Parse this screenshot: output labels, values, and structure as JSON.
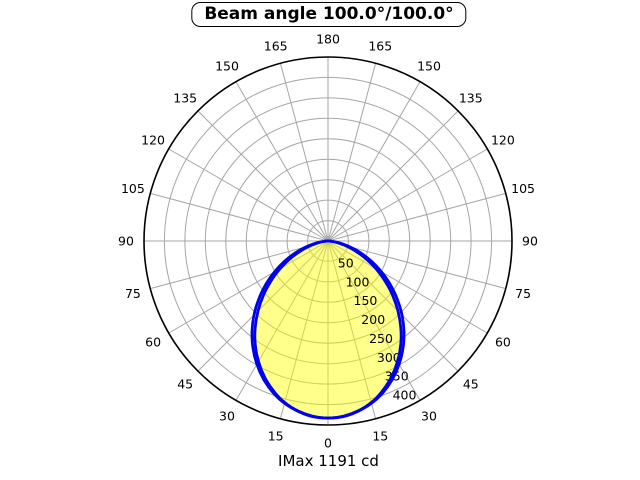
{
  "chart_data": {
    "type": "polar-line",
    "title": "Beam angle 100.0°/100.0°",
    "caption": "IMax 1191 cd",
    "beam_angle_deg": [
      100.0,
      100.0
    ],
    "imax_cd": 1191,
    "angle_convention": "degrees from nadir: 0 = straight down, 180 = straight up, mirrored left/right",
    "angle_ticks_deg": [
      0,
      15,
      30,
      45,
      60,
      75,
      90,
      105,
      120,
      135,
      150,
      165,
      180
    ],
    "radial_ticks": [
      50,
      100,
      150,
      200,
      250,
      300,
      350,
      400
    ],
    "r_max": 450,
    "rlabel_angle_deg": 22.5,
    "grid": true,
    "series": [
      {
        "name": "curve-outer",
        "filled": false,
        "angles_deg": [
          0,
          5,
          10,
          15,
          20,
          25,
          30,
          35,
          40,
          45,
          50,
          55,
          60,
          65,
          70,
          75,
          80,
          85,
          90
        ],
        "values": [
          433,
          431,
          423,
          411,
          394,
          373,
          348,
          320,
          289,
          256,
          221,
          186,
          151,
          117,
          85,
          55,
          30,
          11,
          0
        ]
      },
      {
        "name": "curve-inner",
        "filled": true,
        "angles_deg": [
          0,
          5,
          10,
          15,
          20,
          25,
          30,
          35,
          40,
          45,
          50,
          55,
          60,
          65,
          70,
          75,
          80,
          85,
          90
        ],
        "values": [
          433,
          430,
          422,
          409,
          390,
          367,
          340,
          310,
          277,
          242,
          206,
          170,
          135,
          102,
          71,
          45,
          23,
          7,
          0
        ]
      }
    ],
    "styles": {
      "curve_color": "#0000ee",
      "fill_color": "#ffff00",
      "fill_opacity": 0.45,
      "grid_color": "#a6a6a6",
      "axis_color": "#000000",
      "text_color": "#000000",
      "background": "#ffffff"
    }
  }
}
